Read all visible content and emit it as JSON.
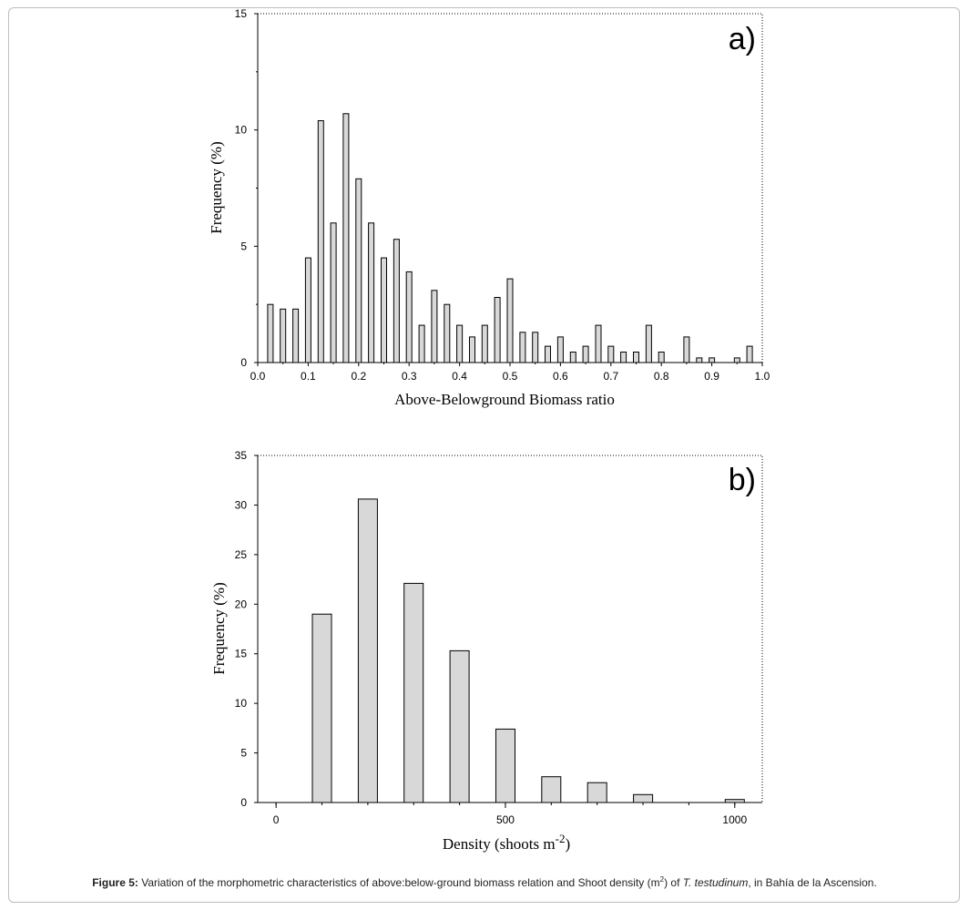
{
  "chart_data": [
    {
      "type": "bar",
      "panel_label": "a)",
      "xlabel": "Above-Belowground Biomass ratio",
      "ylabel": "Frequency (%)",
      "xlim": [
        0.0,
        1.0
      ],
      "ylim": [
        0,
        15
      ],
      "xticks": [
        "0.0",
        "0.1",
        "0.2",
        "0.3",
        "0.4",
        "0.5",
        "0.6",
        "0.7",
        "0.8",
        "0.9",
        "1.0"
      ],
      "yticks": [
        "0",
        "5",
        "10",
        "15"
      ],
      "grid": false,
      "bar_fill": "#d8d8d8",
      "x": [
        0.025,
        0.05,
        0.075,
        0.1,
        0.125,
        0.15,
        0.175,
        0.2,
        0.225,
        0.25,
        0.275,
        0.3,
        0.325,
        0.35,
        0.375,
        0.4,
        0.425,
        0.45,
        0.475,
        0.5,
        0.525,
        0.55,
        0.575,
        0.6,
        0.625,
        0.65,
        0.675,
        0.7,
        0.725,
        0.75,
        0.775,
        0.8,
        0.825,
        0.85,
        0.875,
        0.9,
        0.925,
        0.95,
        0.975
      ],
      "values": [
        2.5,
        2.3,
        2.3,
        4.5,
        10.4,
        6.0,
        10.7,
        7.9,
        6.0,
        4.5,
        5.3,
        3.9,
        1.6,
        3.1,
        2.5,
        1.6,
        1.1,
        1.6,
        2.8,
        3.6,
        1.3,
        1.3,
        0.7,
        1.1,
        0.45,
        0.7,
        1.6,
        0.7,
        0.45,
        0.45,
        1.6,
        0.45,
        0,
        1.1,
        0.2,
        0.2,
        0,
        0.2,
        0.7
      ]
    },
    {
      "type": "bar",
      "panel_label": "b)",
      "xlabel": "Density (shoots m",
      "xlabel_sup": "-2",
      "xlabel_tail": ")",
      "ylabel": "Frequency (%)",
      "xlim": [
        -40,
        1060
      ],
      "ylim": [
        0,
        35
      ],
      "xticks": [
        "0",
        "500",
        "1000"
      ],
      "yticks": [
        "0",
        "5",
        "10",
        "15",
        "20",
        "25",
        "30",
        "35"
      ],
      "grid": false,
      "bar_fill": "#d8d8d8",
      "x": [
        100,
        200,
        300,
        400,
        500,
        600,
        700,
        800,
        900,
        1000
      ],
      "values": [
        19.0,
        30.6,
        22.1,
        15.3,
        7.4,
        2.6,
        2.0,
        0.8,
        0,
        0.3
      ]
    }
  ],
  "caption": {
    "label": "Figure 5:",
    "text_1": " Variation of the morphometric characteristics of above:below-ground biomass relation and Shoot density (m",
    "sup": "2",
    "text_2": ") of ",
    "species": "T. testudinum",
    "text_3": ", in Bahía de la Ascension."
  }
}
